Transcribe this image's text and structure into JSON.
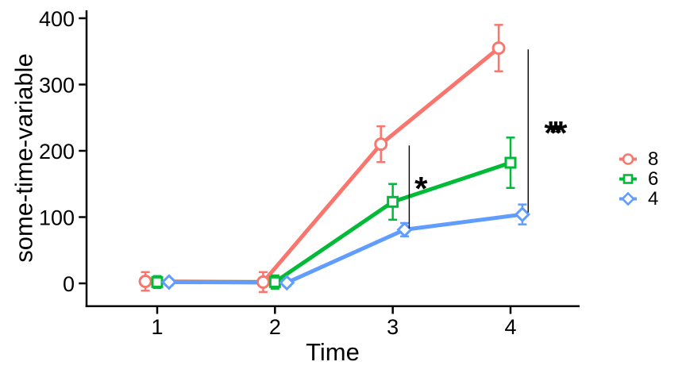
{
  "figure": {
    "background": "#ffffff"
  },
  "chart_data": {
    "type": "line",
    "title": "",
    "xlabel": "Time",
    "ylabel": "some-time-variable",
    "x": [
      1,
      2,
      3,
      4
    ],
    "x_ticks": [
      "1",
      "2",
      "3",
      "4"
    ],
    "x_tick_values": [
      1,
      2,
      3,
      4
    ],
    "y_ticks": [
      "0",
      "100",
      "200",
      "300",
      "400"
    ],
    "y_tick_values": [
      0,
      100,
      200,
      300,
      400
    ],
    "xlim": [
      0.4,
      4.59
    ],
    "ylim": [
      -34,
      412
    ],
    "grid": false,
    "legend_position": "right",
    "axis_color": "#000000",
    "text_color": "#000000",
    "dodge": 0.067,
    "series": [
      {
        "name": "8",
        "color": "#F8766D",
        "marker": "circle",
        "values": [
          3,
          2,
          210,
          355
        ],
        "errors": [
          14,
          15,
          27,
          35
        ]
      },
      {
        "name": "6",
        "color": "#00BA38",
        "marker": "square",
        "values": [
          2,
          2,
          123,
          182
        ],
        "errors": [
          9,
          10,
          27,
          38
        ]
      },
      {
        "name": "4",
        "color": "#619CFF",
        "marker": "diamond",
        "values": [
          2,
          1,
          81,
          104
        ],
        "errors": [
          5,
          5,
          10,
          15
        ]
      }
    ],
    "annotations": {
      "sig_lines": [
        {
          "x": 3.14,
          "y_from": 83,
          "y_to": 208
        },
        {
          "x": 4.15,
          "y_from": 107,
          "y_to": 353
        }
      ],
      "sig_labels": [
        {
          "text": "*",
          "x": 3.24,
          "y": 151
        },
        {
          "text": "***",
          "x": 4.35,
          "y": 235
        }
      ],
      "sig_color": "#000000"
    }
  }
}
